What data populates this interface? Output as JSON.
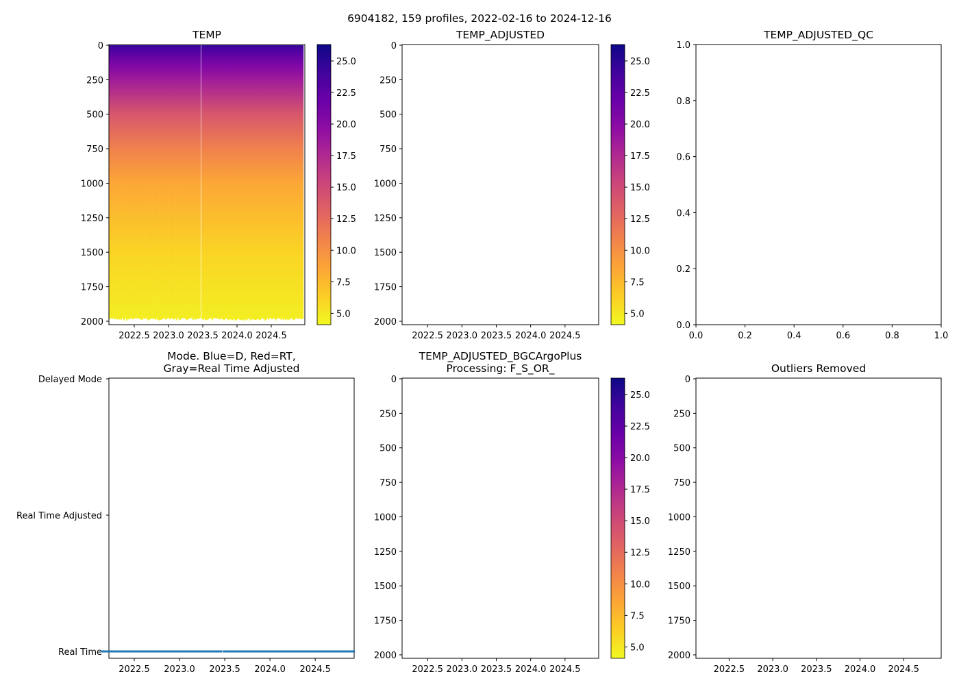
{
  "figure_title": "6904182, 159 profiles, 2022-02-16 to 2024-12-16",
  "colors": {
    "mode_dots": "#1f77b4",
    "colormap": "plasma_r"
  },
  "chart_data": [
    {
      "id": "temp",
      "type": "heatmap",
      "title": "TEMP",
      "n_profiles": 159,
      "xlim": [
        2022.13,
        2024.99
      ],
      "ylim": [
        2025,
        -5
      ],
      "xticks": [
        "2022.5",
        "2023.0",
        "2023.5",
        "2024.0",
        "2024.5"
      ],
      "xtick_values": [
        2022.5,
        2023.0,
        2023.5,
        2024.0,
        2024.5
      ],
      "yticks": [
        "0",
        "250",
        "500",
        "750",
        "1000",
        "1250",
        "1500",
        "1750",
        "2000"
      ],
      "ytick_values": [
        0,
        250,
        500,
        750,
        1000,
        1250,
        1500,
        1750,
        2000
      ],
      "dense_period": [
        2022.13,
        2023.47
      ],
      "dense_depth_fill": 1000,
      "max_depth": 2000,
      "temp_profile": {
        "depth": [
          0,
          50,
          150,
          250,
          500,
          750,
          1000,
          1500,
          2000
        ],
        "temp": [
          24.5,
          23,
          20.5,
          18.5,
          14,
          11,
          8.5,
          6,
          4.6
        ]
      },
      "colorbar": {
        "range": [
          4.1,
          26.3
        ],
        "ticks": [
          "5.0",
          "7.5",
          "10.0",
          "12.5",
          "15.0",
          "17.5",
          "20.0",
          "22.5",
          "25.0"
        ],
        "tick_values": [
          5,
          7.5,
          10,
          12.5,
          15,
          17.5,
          20,
          22.5,
          25
        ]
      }
    },
    {
      "id": "temp_adj",
      "type": "heatmap",
      "title": "TEMP_ADJUSTED",
      "xlim": [
        2022.13,
        2024.99
      ],
      "ylim": [
        2025,
        -5
      ],
      "empty": true
    },
    {
      "id": "temp_adj_qc",
      "type": "scatter",
      "title": "TEMP_ADJUSTED_QC",
      "xlim": [
        0,
        1
      ],
      "ylim": [
        0,
        1
      ],
      "xticks": [
        "0.0",
        "0.2",
        "0.4",
        "0.6",
        "0.8",
        "1.0"
      ],
      "yticks": [
        "0.0",
        "0.2",
        "0.4",
        "0.6",
        "0.8",
        "1.0"
      ],
      "empty": true
    },
    {
      "id": "mode",
      "type": "scatter",
      "title_lines": [
        "Mode. Blue=D, Red=RT,",
        "Gray=Real Time Adjusted"
      ],
      "xlim": [
        2022.22,
        2024.93
      ],
      "yticks": [
        "Real Time",
        "Real Time Adjusted",
        "Delayed Mode"
      ],
      "ytick_values": [
        0,
        1,
        2
      ],
      "ylim": [
        0,
        2
      ],
      "series": [
        {
          "name": "profiles",
          "mode": "Real Time",
          "value": 0,
          "count": 159
        }
      ]
    },
    {
      "id": "bgc",
      "type": "heatmap",
      "title_lines": [
        "TEMP_ADJUSTED_BGCArgoPlus",
        "Processing: F_S_OR_"
      ],
      "xlim": [
        2022.13,
        2024.99
      ],
      "ylim": [
        2025,
        -5
      ],
      "empty": true
    },
    {
      "id": "outliers",
      "type": "heatmap",
      "title": "Outliers Removed",
      "xlim": [
        2022.12,
        2024.93
      ],
      "ylim": [
        2025,
        -5
      ],
      "empty": true
    }
  ]
}
